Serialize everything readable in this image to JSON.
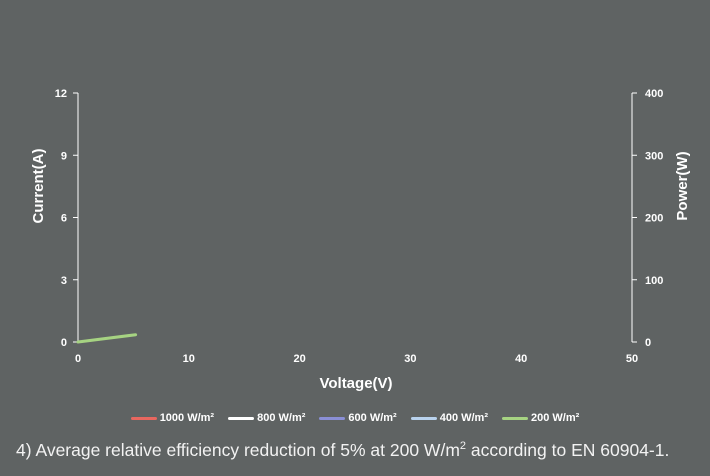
{
  "chart_data": {
    "type": "line",
    "xlabel": "Voltage(V)",
    "ylabel": "Current(A)",
    "y2label": "Power(W)",
    "xlim": [
      0,
      50
    ],
    "ylim": [
      0,
      12
    ],
    "y2lim": [
      0,
      400
    ],
    "x_ticks": [
      "0",
      "10",
      "20",
      "30",
      "40",
      "50"
    ],
    "y_ticks": [
      "0",
      "3",
      "6",
      "9",
      "12"
    ],
    "y2_ticks": [
      "0",
      "100",
      "200",
      "300",
      "400"
    ],
    "grid": false,
    "legend_position": "bottom",
    "series": [
      {
        "name": "1000 W/m²",
        "color": "#e8675f",
        "x": [],
        "y": []
      },
      {
        "name": "800 W/m²",
        "color": "#ffffff",
        "x": [],
        "y": []
      },
      {
        "name": "600 W/m²",
        "color": "#8a8fd6",
        "x": [],
        "y": []
      },
      {
        "name": "400 W/m²",
        "color": "#b9d3ee",
        "x": [],
        "y": []
      },
      {
        "name": "200 W/m²",
        "color": "#a6d382",
        "x": [
          0,
          5.2
        ],
        "y": [
          0,
          0.35
        ]
      }
    ]
  },
  "footnote": {
    "text_before": "4) Average relative efficiency reduction of 5% at 200 W/m",
    "superscript": "2",
    "text_after": " according to EN 60904-1."
  }
}
